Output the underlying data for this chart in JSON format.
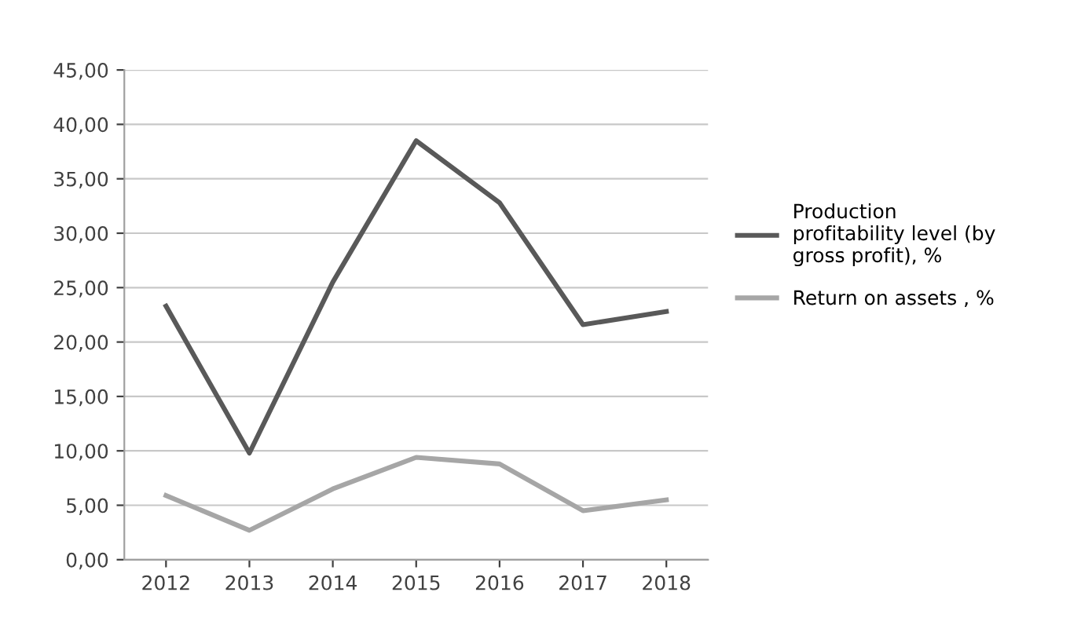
{
  "chart_data": {
    "type": "line",
    "categories": [
      "2012",
      "2013",
      "2014",
      "2015",
      "2016",
      "2017",
      "2018"
    ],
    "series": [
      {
        "name": "Production\nprofitability level (by\ngross profit), %",
        "color": "#595959",
        "values": [
          23.3,
          9.8,
          25.5,
          38.5,
          32.8,
          21.6,
          22.8
        ]
      },
      {
        "name": "Return on assets , %",
        "color": "#a6a6a6",
        "values": [
          5.9,
          2.7,
          6.5,
          9.4,
          8.8,
          4.5,
          5.5
        ]
      }
    ],
    "ylim": [
      0,
      45
    ],
    "yticks": [
      {
        "value": 0,
        "label": "0,00"
      },
      {
        "value": 5,
        "label": "5,00"
      },
      {
        "value": 10,
        "label": "10,00"
      },
      {
        "value": 15,
        "label": "15,00"
      },
      {
        "value": 20,
        "label": "20,00"
      },
      {
        "value": 25,
        "label": "25,00"
      },
      {
        "value": 30,
        "label": "30,00"
      },
      {
        "value": 35,
        "label": "35,00"
      },
      {
        "value": 40,
        "label": "40,00"
      },
      {
        "value": 45,
        "label": "45,00"
      }
    ],
    "grid": "y",
    "legend": "right",
    "marker": "none",
    "line_style": "solid"
  }
}
